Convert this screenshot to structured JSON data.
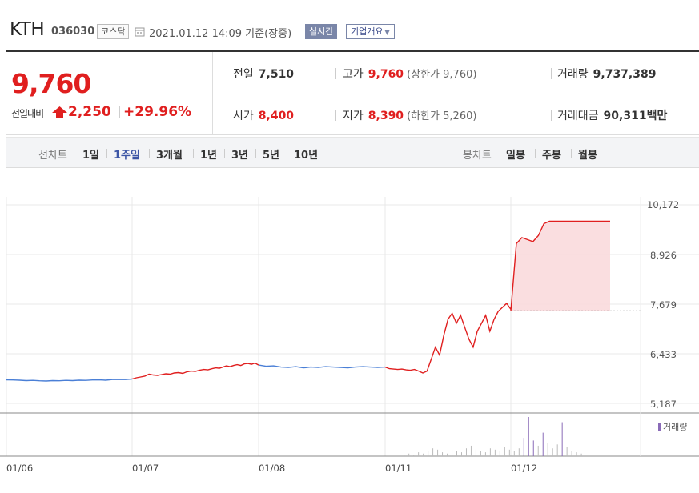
{
  "header": {
    "stock_name": "KTH",
    "stock_code": "036030",
    "market": "코스닥",
    "datetime": "2021.01.12 14:09 기준(장중)",
    "realtime_label": "실시간",
    "company_overview_label": "기업개요"
  },
  "quote": {
    "current_price": "9,760",
    "change_label": "전일대비",
    "change_value": "2,250",
    "change_percent": "+29.96%",
    "prev_close_label": "전일",
    "prev_close": "7,510",
    "high_label": "고가",
    "high": "9,760",
    "upper_limit": "(상한가 9,760)",
    "volume_label": "거래량",
    "volume": "9,737,389",
    "open_label": "시가",
    "open": "8,400",
    "low_label": "저가",
    "low": "8,390",
    "lower_limit": "(하한가 5,260)",
    "amount_label": "거래대금",
    "amount": "90,311",
    "amount_unit": "백만"
  },
  "period_bar": {
    "line_chart_label": "선차트",
    "periods": [
      "1일",
      "1주일",
      "3개월",
      "1년",
      "3년",
      "5년",
      "10년"
    ],
    "active_period": "1주일",
    "candle_chart_label": "봉차트",
    "candles": [
      "일봉",
      "주봉",
      "월봉"
    ]
  },
  "colors": {
    "up": "#e01f1f",
    "down": "#4a7fd6",
    "fill": "#fadadd",
    "volume": "#8a6bb8",
    "grid": "#e8e8e8"
  },
  "chart_data": {
    "type": "line",
    "y_ticks": [
      "10,172",
      "8,926",
      "7,679",
      "6,433",
      "5,187"
    ],
    "ylim": [
      5187,
      10172
    ],
    "x_ticks": [
      "01/06",
      "01/07",
      "01/08",
      "01/11",
      "01/12"
    ],
    "volume_legend": "거래량",
    "reference_price": 7510,
    "segments": [
      {
        "color": "down",
        "values": [
          5780,
          5775,
          5770,
          5760,
          5765,
          5755,
          5750,
          5760,
          5755,
          5765,
          5760,
          5770,
          5765,
          5775,
          5780,
          5770,
          5785,
          5790,
          5785,
          5800
        ]
      },
      {
        "color": "up",
        "values": [
          5800,
          5830,
          5850,
          5870,
          5920,
          5900,
          5890,
          5910,
          5930,
          5920,
          5950,
          5960,
          5940,
          5980,
          6000,
          5990,
          6020,
          6040,
          6030,
          6060
        ]
      },
      {
        "color": "up",
        "values": [
          6060,
          6080,
          6070,
          6100,
          6130,
          6110,
          6140,
          6160,
          6140,
          6180,
          6190,
          6170,
          6200,
          6150
        ]
      },
      {
        "color": "down",
        "values": [
          6150,
          6120,
          6130,
          6100,
          6090,
          6110,
          6080,
          6100,
          6090,
          6110,
          6100,
          6090,
          6080,
          6100,
          6110,
          6100,
          6090,
          6100
        ]
      },
      {
        "color": "up",
        "values": [
          6100,
          6060,
          6050,
          6040,
          6050,
          6030,
          6020,
          6040,
          6000,
          5950,
          6000,
          6300,
          6600,
          6400,
          6900,
          7300,
          7450,
          7200,
          7400,
          7100,
          6800,
          6600,
          7000,
          7200,
          7400,
          7000,
          7300,
          7500,
          7600,
          7700,
          7550
        ]
      },
      {
        "color": "up",
        "values": [
          7510,
          9200,
          9350,
          9300,
          9250,
          9400,
          9700,
          9760,
          9760,
          9760,
          9760,
          9760,
          9760,
          9760,
          9760,
          9760,
          9760,
          9760,
          9760
        ]
      }
    ],
    "volume": [
      0,
      0,
      0,
      0,
      0,
      0,
      0,
      0,
      0,
      0,
      0,
      0,
      0,
      0,
      0,
      0,
      0,
      0,
      0,
      0,
      0,
      0,
      0,
      0,
      0,
      0,
      0,
      0,
      0,
      0,
      0,
      0,
      0,
      0,
      0,
      0,
      0,
      0,
      0,
      0,
      0,
      0,
      0,
      0,
      0,
      0,
      0,
      0,
      0,
      0,
      0,
      0,
      0,
      0,
      0,
      0,
      0,
      0,
      0,
      0,
      0,
      0,
      0,
      0,
      0,
      0,
      0,
      0,
      0,
      0,
      0,
      0,
      0,
      0,
      0,
      0,
      0,
      0,
      0,
      0,
      0,
      0,
      0,
      1,
      2,
      1,
      3,
      2,
      4,
      6,
      5,
      3,
      2,
      5,
      4,
      3,
      6,
      8,
      5,
      4,
      3,
      6,
      5,
      4,
      7,
      5,
      4,
      6,
      14,
      30,
      12,
      8,
      18,
      10,
      6,
      9,
      26,
      7,
      4,
      3,
      2,
      0,
      0,
      0,
      0,
      0,
      0
    ]
  }
}
